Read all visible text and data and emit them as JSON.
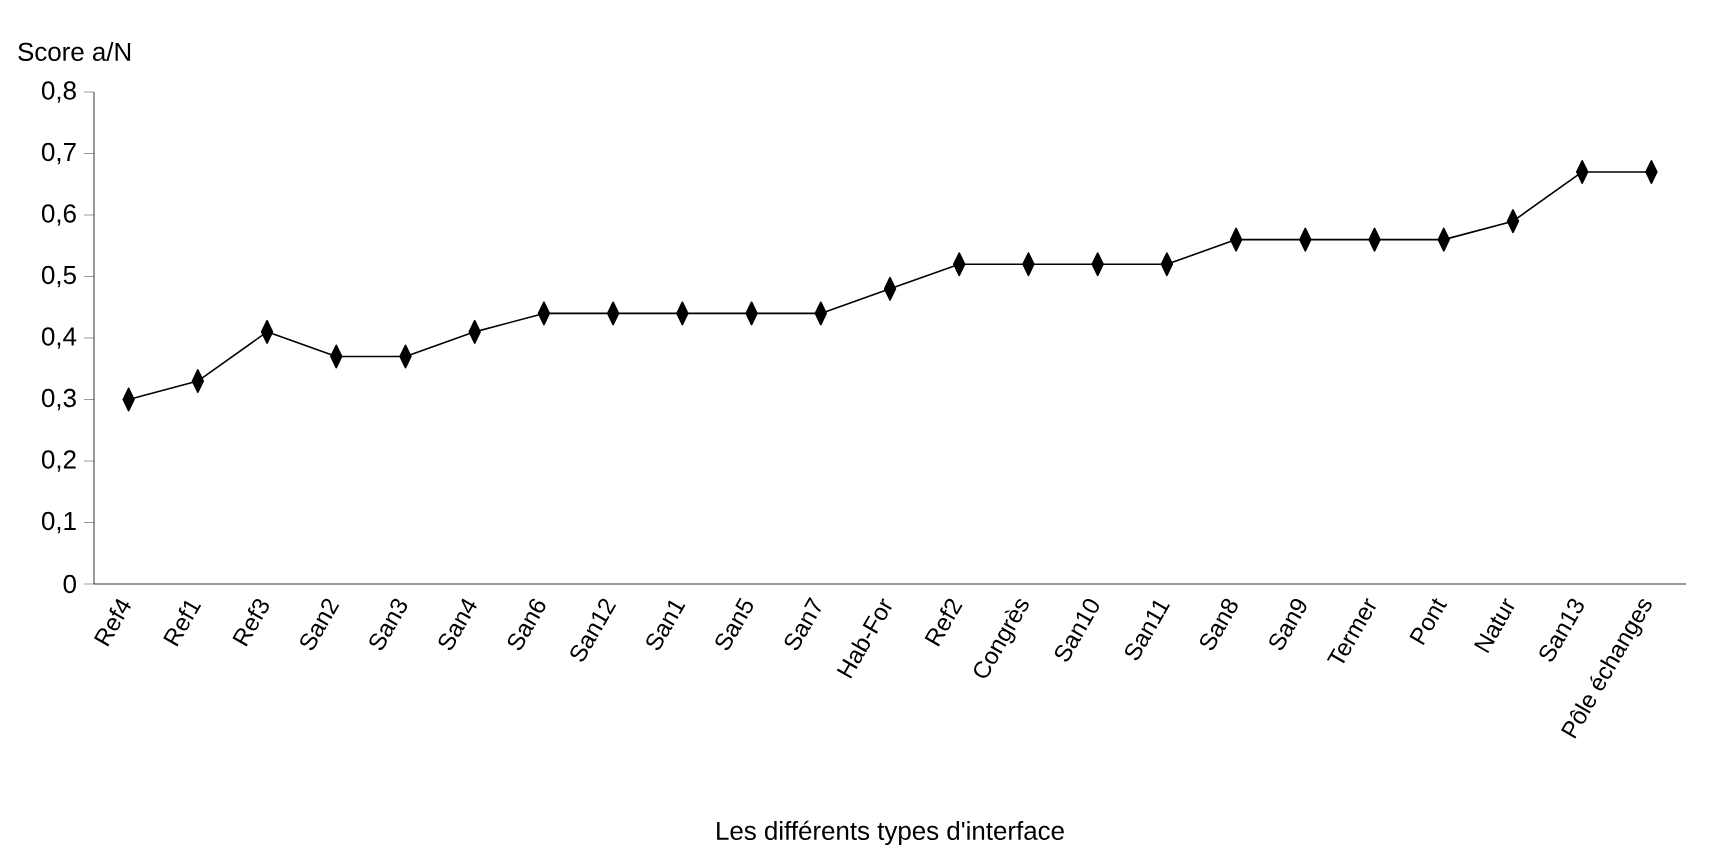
{
  "chart_data": {
    "type": "line",
    "ylabel": "Score a/N",
    "xlabel": "Les différents types d'interface",
    "categories": [
      "Ref4",
      "Ref1",
      "Ref3",
      "San2",
      "San3",
      "San4",
      "San6",
      "San12",
      "San1",
      "San5",
      "San7",
      "Hab-For",
      "Ref2",
      "Congrès",
      "San10",
      "San11",
      "San8",
      "San9",
      "Termer",
      "Pont",
      "Natur",
      "San13",
      "Pôle échanges"
    ],
    "series": [
      {
        "color": "#000000",
        "values": [
          0.3,
          0.33,
          0.41,
          0.37,
          0.37,
          0.41,
          0.44,
          0.44,
          0.44,
          0.44,
          0.44,
          0.48,
          0.52,
          0.52,
          0.52,
          0.52,
          0.56,
          0.56,
          0.56,
          0.56,
          0.59,
          0.67,
          0.67
        ]
      }
    ],
    "ylim": [
      0,
      0.8
    ],
    "yticks": [
      0,
      {
        "value": 0.1,
        "label": "0,1"
      },
      {
        "value": 0.2,
        "label": "0,2"
      },
      {
        "value": 0.3,
        "label": "0,3"
      },
      {
        "value": 0.4,
        "label": "0,4"
      },
      {
        "value": 0.5,
        "label": "0,5"
      },
      {
        "value": 0.6,
        "label": "0,6"
      },
      {
        "value": 0.7,
        "label": "0,7"
      },
      {
        "value": 0.8,
        "label": "0,8"
      }
    ],
    "marker": "diamond",
    "line_style": "solid",
    "grid": false
  }
}
